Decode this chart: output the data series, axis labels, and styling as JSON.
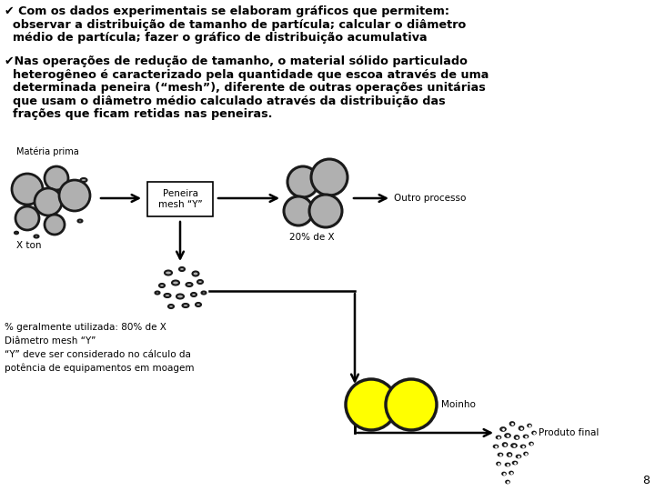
{
  "background_color": "#ffffff",
  "bullet1_line1": "✔ Com os dados experimentais se elaboram gráficos que permitem:",
  "bullet1_line2": "  observar a distribuição de tamanho de partícula; calcular o diâmetro",
  "bullet1_line3": "  médio de partícula; fazer o gráfico de distribuição acumulativa",
  "bullet2_line1": "✔Nas operações de redução de tamanho, o material sólido particulado",
  "bullet2_line2": "  heterogêneo é caracterizado pela quantidade que escoa através de uma",
  "bullet2_line3": "  determinada peneira (“mesh”), diferente de outras operações unitárias",
  "bullet2_line4": "  que usam o diâmetro médio calculado através da distribuição das",
  "bullet2_line5": "  frações que ficam retidas nas peneiras.",
  "label_materia_prima": "Matéria prima",
  "label_x_ton": "X ton",
  "label_peneira": "Peneira\nmesh “Y”",
  "label_20pct": "20% de X",
  "label_outro": "Outro processo",
  "label_80pct": "% geralmente utilizada: 80% de X",
  "label_diametro": "Diâmetro mesh “Y”",
  "label_y_deve": "“Y” deve ser considerado no cálculo da",
  "label_potencia": "potência de equipamentos em moagem",
  "label_moinho": "Moinho",
  "label_produto": "Produto final",
  "label_page": "8",
  "gray_fill": "#b0b0b0",
  "gray_edge": "#1a1a1a",
  "yellow_fill": "#ffff00",
  "yellow_edge": "#1a1a1a",
  "tiny_fill": "#606060",
  "tiny_edge": "#1a1a1a"
}
